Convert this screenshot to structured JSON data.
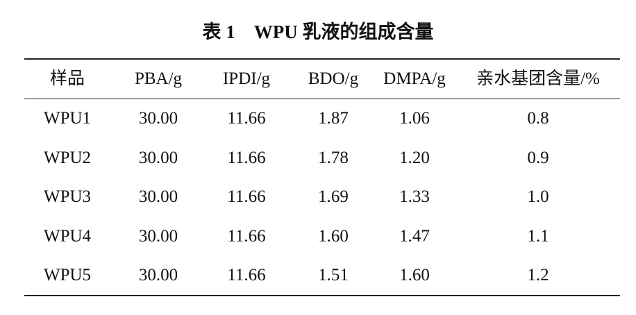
{
  "table": {
    "title": "表 1　WPU 乳液的组成含量",
    "header": [
      "样品",
      "PBA/g",
      "IPDI/g",
      "BDO/g",
      "DMPA/g",
      "亲水基团含量/%"
    ],
    "rows": [
      [
        "WPU1",
        "30.00",
        "11.66",
        "1.87",
        "1.06",
        "0.8"
      ],
      [
        "WPU2",
        "30.00",
        "11.66",
        "1.78",
        "1.20",
        "0.9"
      ],
      [
        "WPU3",
        "30.00",
        "11.66",
        "1.69",
        "1.33",
        "1.0"
      ],
      [
        "WPU4",
        "30.00",
        "11.66",
        "1.60",
        "1.47",
        "1.1"
      ],
      [
        "WPU5",
        "30.00",
        "11.66",
        "1.51",
        "1.60",
        "1.2"
      ]
    ]
  }
}
